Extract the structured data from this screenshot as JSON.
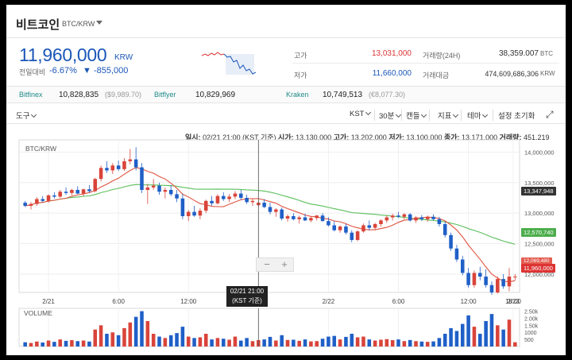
{
  "header": {
    "coin_name": "비트코인",
    "pair": "BTC/KRW"
  },
  "quote": {
    "price": "11,960,000",
    "unit": "KRW",
    "change_label": "전일대비",
    "change_pct": "-6.67%",
    "change_amt": "▼ -855,000"
  },
  "stats": {
    "high_label": "고가",
    "high_value": "13,031,000",
    "low_label": "저가",
    "low_value": "11,660,000",
    "volume_label": "거래량(24H)",
    "volume_value": "38,359.007",
    "volume_unit": "BTC",
    "amount_label": "거래대금",
    "amount_value": "474,609,686,306",
    "amount_unit": "KRW"
  },
  "exchanges": [
    {
      "name": "Bitfinex",
      "value": "10,828,835",
      "sub": "($9,989.70)"
    },
    {
      "name": "Bitflyer",
      "value": "10,829,969",
      "sub": ""
    },
    {
      "name": "Kraken",
      "value": "10,749,513",
      "sub": "(€8,077.30)"
    }
  ],
  "toolbar": {
    "tools": "도구",
    "timezone": "KST",
    "interval": "30분",
    "candle": "캔들",
    "indicator": "지표",
    "theme": "테마",
    "reset": "설정 초기화"
  },
  "ohlc_bar": {
    "date_label": "일시:",
    "date_value": "02/21 21:00 (KST 기준)",
    "open_label": "시가:",
    "open_value": "13,130,000",
    "high_label": "고가:",
    "high_value": "13,202,000",
    "low_label": "저가:",
    "low_value": "13,100,000",
    "close_label": "종가:",
    "close_value": "13,171,000",
    "volume_label": "거래량:",
    "volume_value": "451.219"
  },
  "chart_labels": {
    "pair": "BTC/KRW",
    "volume": "VOLUME",
    "tooltip_line1": "02/21 21:00",
    "tooltip_line2": "(KST 기준)",
    "zoom_minus": "−",
    "zoom_plus": "+",
    "tag_ma_long": "13,347,948",
    "tag_ma_short": "12,570,740",
    "tag_price_a": "12,069,480",
    "tag_price": "11,960,000"
  },
  "colors": {
    "up": "#d9443a",
    "down": "#1f5fc7",
    "ma_short": "#e0533f",
    "ma_long": "#5bbf5b",
    "accent": "#1a56b8"
  },
  "chart_data": {
    "type": "candlestick",
    "x_ticks": [
      "2/21",
      "6:00",
      "12:00",
      "18:00",
      "2/22",
      "6:00",
      "12:00",
      "18:00",
      "2/23"
    ],
    "y_ticks": [
      "14,000,000",
      "13,500,000",
      "13,000,000",
      "12,500,000",
      "12,000,000"
    ],
    "ylim": [
      11700000,
      14200000
    ],
    "volume_ticks": [
      "2.50k",
      "2.00k",
      "1.50k",
      "1000",
      "500"
    ],
    "volume_ylim": [
      0,
      2700
    ],
    "candles": [
      [
        13170000,
        13200000,
        13100000,
        13120000,
        300
      ],
      [
        13120000,
        13180000,
        13060000,
        13150000,
        250
      ],
      [
        13150000,
        13260000,
        13120000,
        13230000,
        350
      ],
      [
        13230000,
        13280000,
        13180000,
        13200000,
        280
      ],
      [
        13200000,
        13310000,
        13170000,
        13290000,
        420
      ],
      [
        13290000,
        13340000,
        13240000,
        13270000,
        330
      ],
      [
        13270000,
        13380000,
        13250000,
        13350000,
        500
      ],
      [
        13350000,
        13420000,
        13300000,
        13330000,
        400
      ],
      [
        13330000,
        13400000,
        13290000,
        13380000,
        450
      ],
      [
        13380000,
        13440000,
        13310000,
        13320000,
        380
      ],
      [
        13320000,
        13400000,
        13280000,
        13390000,
        420
      ],
      [
        13390000,
        13460000,
        13330000,
        13360000,
        350
      ],
      [
        13360000,
        13580000,
        13340000,
        13560000,
        1200
      ],
      [
        13560000,
        13780000,
        13520000,
        13740000,
        1500
      ],
      [
        13740000,
        13850000,
        13660000,
        13700000,
        900
      ],
      [
        13700000,
        13820000,
        13640000,
        13780000,
        1000
      ],
      [
        13780000,
        13860000,
        13690000,
        13720000,
        800
      ],
      [
        13720000,
        13900000,
        13690000,
        13850000,
        1300
      ],
      [
        13850000,
        14050000,
        13800000,
        13880000,
        1700
      ],
      [
        13880000,
        14080000,
        13700000,
        13750000,
        2100
      ],
      [
        13750000,
        13820000,
        13330000,
        13380000,
        2500
      ],
      [
        13380000,
        13480000,
        13150000,
        13420000,
        1800
      ],
      [
        13420000,
        13560000,
        13380000,
        13450000,
        900
      ],
      [
        13450000,
        13500000,
        13300000,
        13350000,
        700
      ],
      [
        13350000,
        13420000,
        13240000,
        13380000,
        600
      ],
      [
        13380000,
        13460000,
        13280000,
        13310000,
        800
      ],
      [
        13310000,
        13380000,
        13180000,
        13240000,
        950
      ],
      [
        13240000,
        13320000,
        12900000,
        12950000,
        1400
      ],
      [
        12950000,
        13050000,
        12870000,
        13020000,
        700
      ],
      [
        13020000,
        13120000,
        12940000,
        12960000,
        600
      ],
      [
        12960000,
        13080000,
        12900000,
        13040000,
        650
      ],
      [
        13040000,
        13220000,
        13000000,
        13200000,
        900
      ],
      [
        13200000,
        13280000,
        13120000,
        13160000,
        500
      ],
      [
        13160000,
        13310000,
        13140000,
        13280000,
        600
      ],
      [
        13280000,
        13340000,
        13200000,
        13230000,
        550
      ],
      [
        13230000,
        13310000,
        13180000,
        13270000,
        480
      ],
      [
        13270000,
        13360000,
        13230000,
        13320000,
        700
      ],
      [
        13320000,
        13380000,
        13220000,
        13250000,
        420
      ],
      [
        13250000,
        13300000,
        13150000,
        13180000,
        600
      ],
      [
        13180000,
        13240000,
        13120000,
        13200000,
        380
      ],
      [
        13130000,
        13202000,
        13100000,
        13171000,
        451
      ],
      [
        13171000,
        13230000,
        13080000,
        13100000,
        500
      ],
      [
        13100000,
        13170000,
        12980000,
        13020000,
        680
      ],
      [
        13020000,
        13080000,
        12940000,
        13060000,
        420
      ],
      [
        13060000,
        13090000,
        12880000,
        12910000,
        800
      ],
      [
        12910000,
        12980000,
        12860000,
        12950000,
        460
      ],
      [
        12950000,
        13000000,
        12880000,
        12900000,
        480
      ],
      [
        12900000,
        12960000,
        12830000,
        12930000,
        400
      ],
      [
        12930000,
        12990000,
        12870000,
        12880000,
        500
      ],
      [
        12880000,
        12950000,
        12850000,
        12920000,
        360
      ],
      [
        12920000,
        12970000,
        12880000,
        12960000,
        380
      ],
      [
        12960000,
        13000000,
        12860000,
        12870000,
        550
      ],
      [
        12870000,
        12930000,
        12780000,
        12800000,
        700
      ],
      [
        12800000,
        12870000,
        12700000,
        12720000,
        750
      ],
      [
        12720000,
        12800000,
        12680000,
        12780000,
        500
      ],
      [
        12780000,
        12820000,
        12650000,
        12680000,
        680
      ],
      [
        12680000,
        12720000,
        12520000,
        12560000,
        900
      ],
      [
        12560000,
        12720000,
        12540000,
        12700000,
        650
      ],
      [
        12700000,
        12830000,
        12680000,
        12800000,
        700
      ],
      [
        12800000,
        12880000,
        12720000,
        12760000,
        500
      ],
      [
        12760000,
        12840000,
        12720000,
        12820000,
        420
      ],
      [
        12820000,
        12900000,
        12780000,
        12880000,
        480
      ],
      [
        12880000,
        12960000,
        12840000,
        12930000,
        520
      ],
      [
        12930000,
        12990000,
        12880000,
        12960000,
        450
      ],
      [
        12960000,
        13020000,
        12920000,
        12940000,
        500
      ],
      [
        12940000,
        13000000,
        12900000,
        12980000,
        380
      ],
      [
        12980000,
        13000000,
        12860000,
        12880000,
        460
      ],
      [
        12880000,
        12950000,
        12840000,
        12930000,
        380
      ],
      [
        12930000,
        12970000,
        12870000,
        12900000,
        350
      ],
      [
        12900000,
        12960000,
        12860000,
        12940000,
        330
      ],
      [
        12940000,
        12980000,
        12880000,
        12900000,
        360
      ],
      [
        12900000,
        12940000,
        12780000,
        12820000,
        600
      ],
      [
        12820000,
        12860000,
        12600000,
        12640000,
        900
      ],
      [
        12640000,
        12680000,
        12380000,
        12420000,
        1300
      ],
      [
        12420000,
        12480000,
        12200000,
        12240000,
        1100
      ],
      [
        12240000,
        12300000,
        11980000,
        12020000,
        1600
      ],
      [
        12020000,
        12100000,
        11780000,
        11820000,
        2200
      ],
      [
        11820000,
        12060000,
        11780000,
        12020000,
        1400
      ],
      [
        12020000,
        12120000,
        11900000,
        11960000,
        900
      ],
      [
        11960000,
        12080000,
        11780000,
        11820000,
        1800
      ],
      [
        11820000,
        11880000,
        11660000,
        11700000,
        2300
      ],
      [
        11700000,
        11960000,
        11680000,
        11920000,
        1500
      ],
      [
        11920000,
        12000000,
        11760000,
        11800000,
        1200
      ],
      [
        11800000,
        12100000,
        11720000,
        11960000,
        1900
      ],
      [
        11960000,
        12000000,
        11900000,
        11960000,
        300
      ]
    ]
  }
}
